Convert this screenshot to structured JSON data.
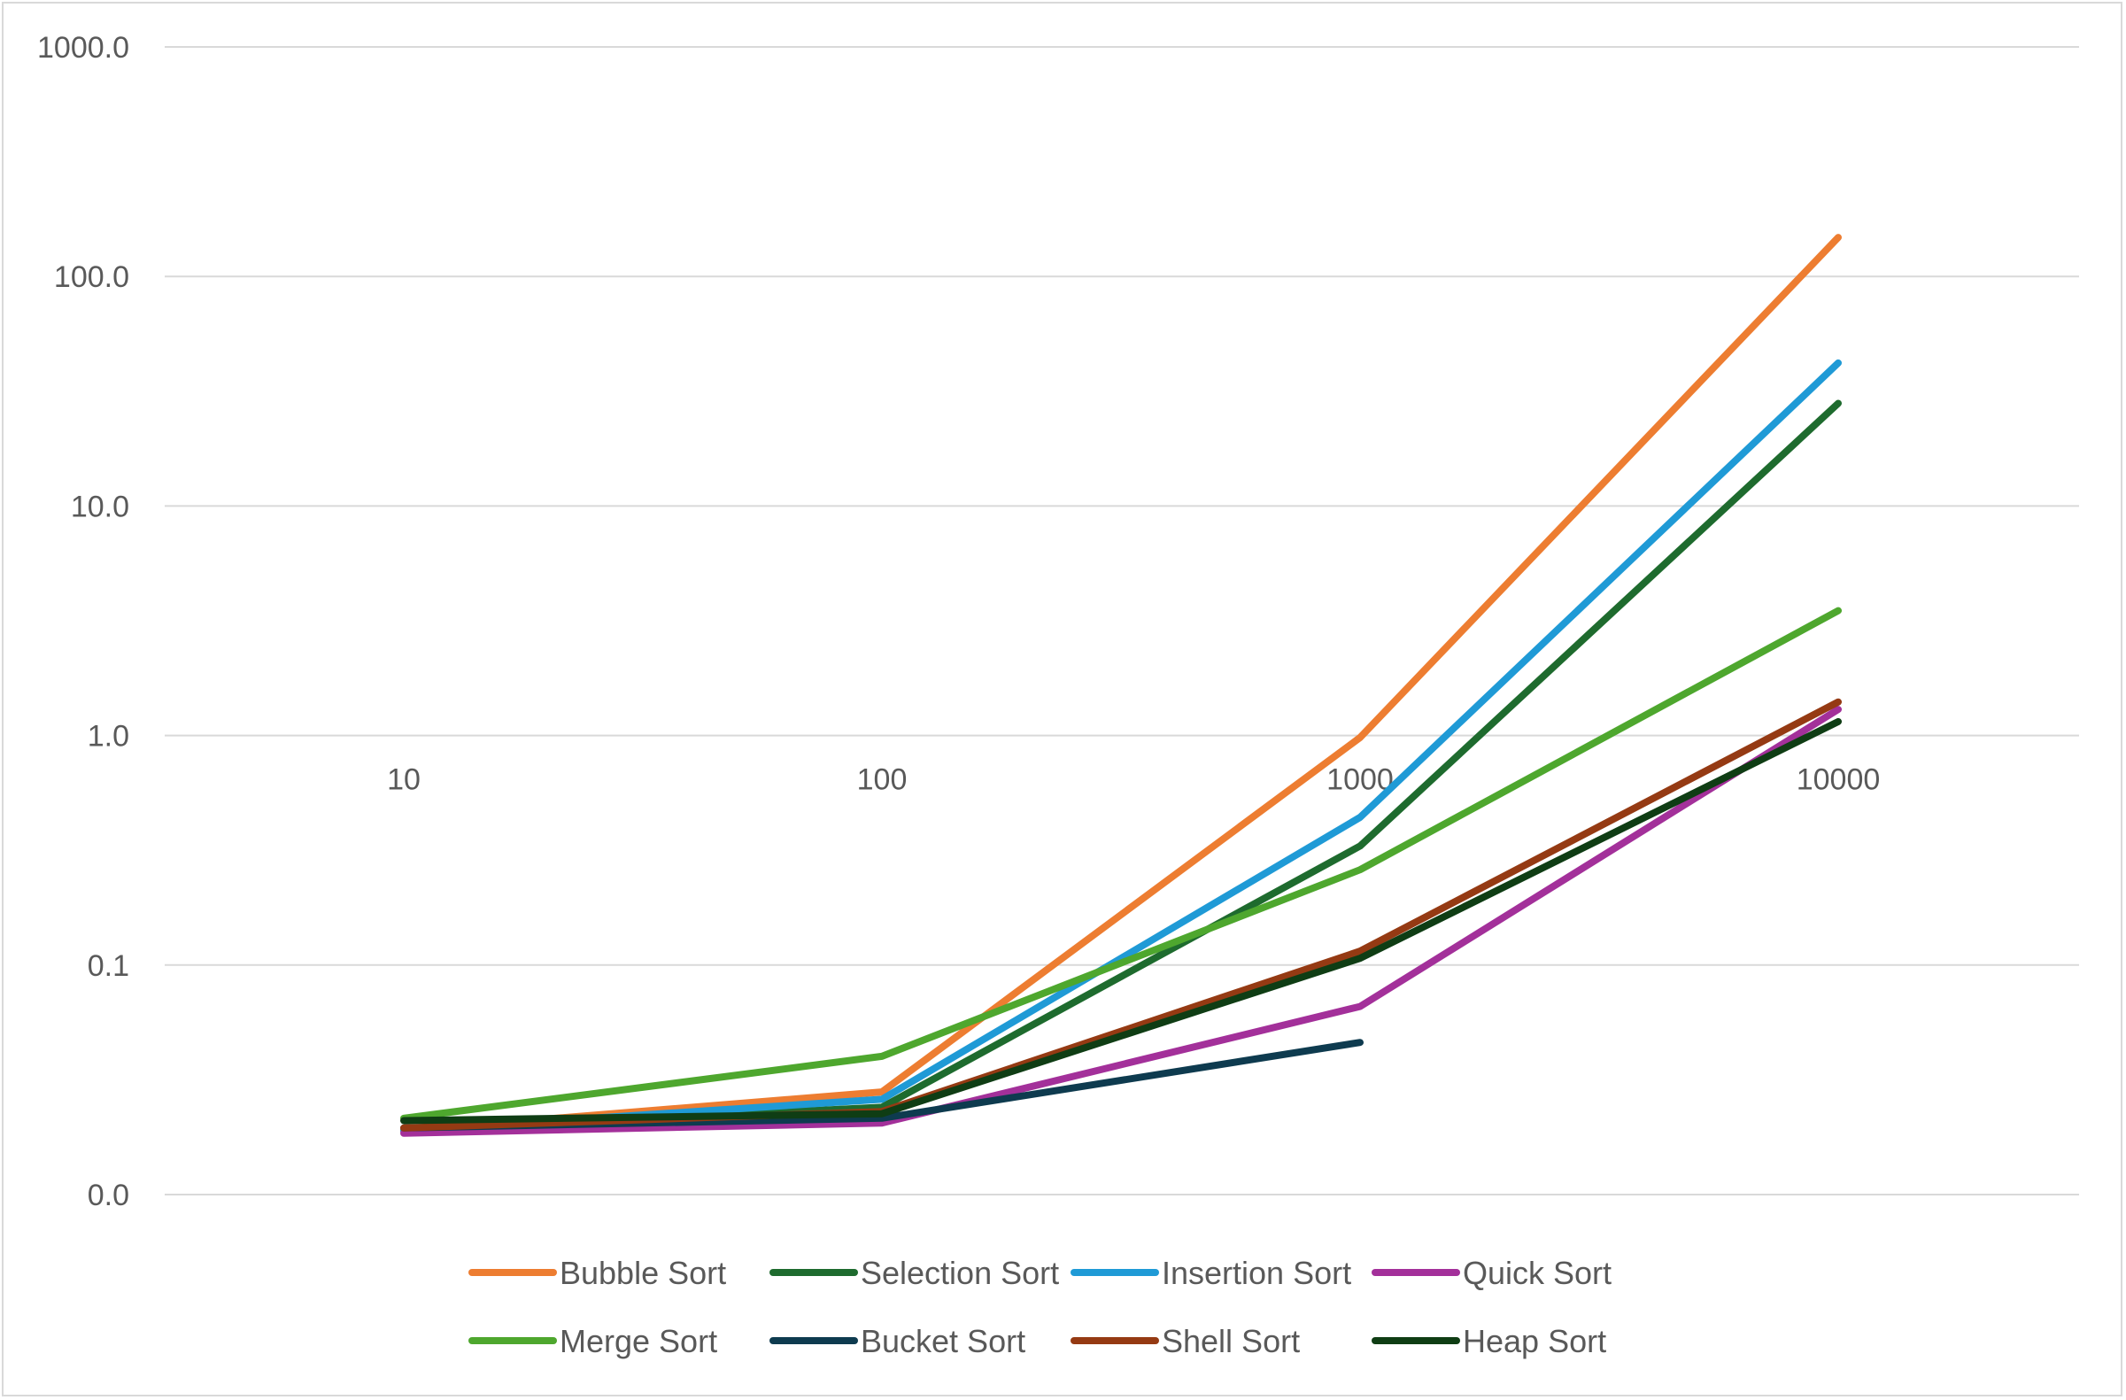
{
  "chart_data": {
    "type": "line",
    "title": "",
    "xlabel": "",
    "ylabel": "",
    "y_scale": "log",
    "ylim": [
      0.01,
      1000
    ],
    "grid": true,
    "legend_position": "bottom",
    "categories": [
      "10",
      "100",
      "1000",
      "10000"
    ],
    "y_tick_labels": [
      "1000.0",
      "100.0",
      "10.0",
      "1.0",
      "0.1",
      "0.0"
    ],
    "y_tick_values": [
      1000,
      100,
      10,
      1,
      0.1,
      0.01
    ],
    "series": [
      {
        "name": "Bubble Sort",
        "color": "#ED7D31",
        "values": [
          0.019,
          0.028,
          0.98,
          148
        ]
      },
      {
        "name": "Selection Sort",
        "color": "#1E6B2E",
        "values": [
          0.019,
          0.024,
          0.33,
          28
        ]
      },
      {
        "name": "Insertion Sort",
        "color": "#1F9AD6",
        "values": [
          0.019,
          0.026,
          0.44,
          42
        ]
      },
      {
        "name": "Quick Sort",
        "color": "#A3309A",
        "values": [
          0.0185,
          0.0205,
          0.066,
          1.3
        ]
      },
      {
        "name": "Merge Sort",
        "color": "#4EA72E",
        "values": [
          0.0215,
          0.04,
          0.26,
          3.5
        ]
      },
      {
        "name": "Bucket Sort",
        "color": "#0E3B4F",
        "values": [
          0.0195,
          0.0215,
          0.046,
          null
        ]
      },
      {
        "name": "Shell Sort",
        "color": "#953A13",
        "values": [
          0.0195,
          0.023,
          0.115,
          1.4
        ]
      },
      {
        "name": "Heap Sort",
        "color": "#0F3D14",
        "values": [
          0.021,
          0.0225,
          0.107,
          1.15
        ]
      }
    ]
  }
}
